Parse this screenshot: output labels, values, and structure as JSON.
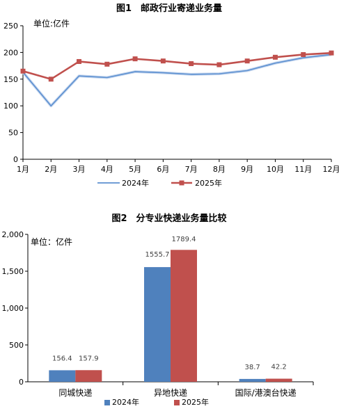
{
  "chart_data": [
    {
      "type": "line",
      "title": "图1　邮政行业寄递业务量",
      "unit_label": "单位:亿件",
      "categories": [
        "1月",
        "2月",
        "3月",
        "4月",
        "5月",
        "6月",
        "7月",
        "8月",
        "9月",
        "10月",
        "11月",
        "12月"
      ],
      "ylim": [
        0,
        250
      ],
      "yticks": [
        0,
        50,
        100,
        150,
        200,
        250
      ],
      "grid": false,
      "legend_position": "bottom",
      "series": [
        {
          "name": "2024年",
          "color": "#5b8fd0",
          "marker": "none",
          "values": [
            163,
            100,
            156,
            153,
            164,
            162,
            159,
            160,
            166,
            180,
            190,
            196
          ]
        },
        {
          "name": "2025年",
          "color": "#c0504d",
          "marker": "square",
          "values": [
            165,
            150,
            183,
            178,
            188,
            184,
            179,
            177,
            184,
            191,
            196,
            199
          ]
        }
      ]
    },
    {
      "type": "bar",
      "title": "图2　分专业快递业务量比较",
      "unit_label": "单位：亿件",
      "categories": [
        "同城快递",
        "异地快递",
        "国际/港澳台快递"
      ],
      "ylim": [
        0,
        2000
      ],
      "yticks": [
        0,
        500,
        1000,
        1500,
        2000
      ],
      "ytick_labels": [
        "0",
        "500",
        "1,000",
        "1,500",
        "2,000"
      ],
      "grid": false,
      "legend_position": "bottom",
      "series": [
        {
          "name": "2024年",
          "color": "#4f81bd",
          "values": [
            156.4,
            1555.7,
            38.7
          ],
          "labels": [
            "156.4",
            "1555.7",
            "38.7"
          ]
        },
        {
          "name": "2025年",
          "color": "#c0504d",
          "values": [
            157.9,
            1789.4,
            42.2
          ],
          "labels": [
            "157.9",
            "1789.4",
            "42.2"
          ]
        }
      ]
    }
  ]
}
